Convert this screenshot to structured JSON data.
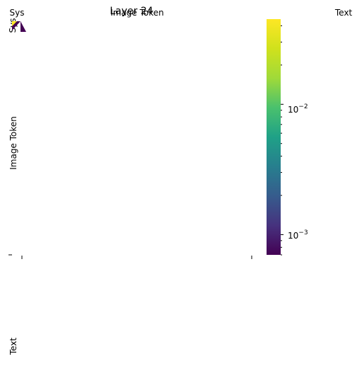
{
  "chart_data": {
    "type": "heatmap",
    "title": "Layer 24",
    "x_tick_labels": [
      "Sys",
      "Image Token",
      "Text"
    ],
    "y_tick_labels": [
      "Sys",
      "Image Token",
      "Text"
    ],
    "colormap": "viridis",
    "colorbar": {
      "scale": "log",
      "range": [
        0.0007,
        0.045
      ],
      "tick_labels": [
        {
          "value": 0.01,
          "base": "10",
          "exp": "−2"
        },
        {
          "value": 0.001,
          "base": "10",
          "exp": "−3"
        }
      ]
    },
    "visible_cells": [
      {
        "row": "Sys",
        "col": "Sys",
        "value": 0.0007
      },
      {
        "row": "Sys",
        "col": "Sys",
        "value": 0.045
      }
    ],
    "colors": {
      "low": "#440154",
      "high": "#fde725"
    }
  }
}
